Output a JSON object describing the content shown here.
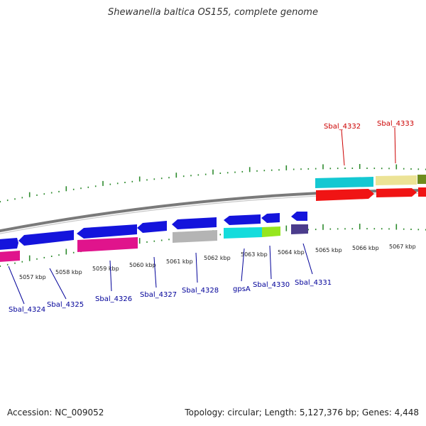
{
  "title": "Shewanella baltica OS155, complete genome",
  "footer": {
    "accession": "Accession: NC_009052",
    "stats": "Topology: circular; Length: 5,127,376 bp; Genes: 4,448"
  },
  "colors": {
    "backbone": "#8c8c8c",
    "tick": "#2e8b2e",
    "label_top": "#cc0000",
    "label_bottom": "#000099"
  },
  "scale_labels": [
    "5057 kbp",
    "5058 kbp",
    "5059 kbp",
    "5060 kbp",
    "5061 kbp",
    "5062 kbp",
    "5063 kbp",
    "5064 kbp",
    "5065 kbp",
    "5066 kbp",
    "5067 kbp"
  ],
  "top_labels": [
    "Sbal_4332",
    "Sbal_4333"
  ],
  "bottom_labels": [
    "Sbal_4324",
    "Sbal_4325",
    "Sbal_4326",
    "Sbal_4327",
    "Sbal_4328",
    "gpsA",
    "Sbal_4330",
    "Sbal_4331"
  ],
  "features": [
    {
      "name": "blue-cds-1",
      "color": "#1414dc",
      "direction": "reverse"
    },
    {
      "name": "blue-cds-2",
      "color": "#1414dc",
      "direction": "reverse"
    },
    {
      "name": "blue-cds-3",
      "color": "#1414dc",
      "direction": "reverse"
    },
    {
      "name": "blue-cds-4",
      "color": "#1414dc",
      "direction": "reverse"
    },
    {
      "name": "blue-cds-5",
      "color": "#1414dc",
      "direction": "reverse"
    },
    {
      "name": "blue-cds-6",
      "color": "#1414dc",
      "direction": "reverse"
    },
    {
      "name": "blue-cds-7",
      "color": "#1414dc",
      "direction": "reverse"
    },
    {
      "name": "blue-cds-8",
      "color": "#1414dc",
      "direction": "reverse"
    },
    {
      "name": "pink-block-1",
      "color": "#e0148c",
      "direction": "none"
    },
    {
      "name": "pink-block-2",
      "color": "#e0148c",
      "direction": "none"
    },
    {
      "name": "gray-block",
      "color": "#b4b4b4",
      "direction": "none"
    },
    {
      "name": "cyan-block-bottom",
      "color": "#14dcdc",
      "direction": "none"
    },
    {
      "name": "green-block",
      "color": "#96e61e",
      "direction": "none"
    },
    {
      "name": "purple-block",
      "color": "#4b3c8c",
      "direction": "none"
    },
    {
      "name": "cyan-block-top",
      "color": "#14c8d2",
      "direction": "none"
    },
    {
      "name": "khaki-block",
      "color": "#ece396",
      "direction": "none"
    },
    {
      "name": "olive-block",
      "color": "#6e8c1e",
      "direction": "none"
    },
    {
      "name": "red-cds-1",
      "color": "#f01414",
      "direction": "forward"
    },
    {
      "name": "red-cds-2",
      "color": "#f01414",
      "direction": "forward"
    },
    {
      "name": "red-cds-3",
      "color": "#f01414",
      "direction": "forward"
    }
  ]
}
